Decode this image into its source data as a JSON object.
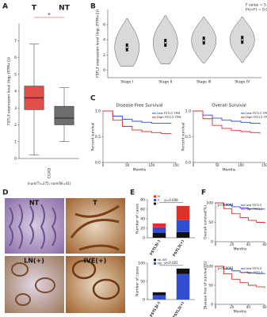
{
  "figure": {
    "labels": [
      "A",
      "B",
      "C",
      "D",
      "E",
      "F"
    ],
    "histology": [
      "NT",
      "T",
      "LN(+)",
      "IVE(+)"
    ]
  },
  "chart_data": [
    {
      "type": "box",
      "ylabel": "FSTL3 expression level (log₂ (TPM+1))",
      "xlabel": "COAD",
      "xnote": "(num(T)=275; num(N)=41)",
      "annotation": "*",
      "series": [
        {
          "name": "T",
          "color": "#e0504a",
          "values": [
            0.2,
            2.9,
            3.6,
            4.3,
            6.8
          ]
        },
        {
          "name": "NT",
          "color": "#6e6e6e",
          "values": [
            1.0,
            2.0,
            2.4,
            3.1,
            4.2
          ]
        }
      ],
      "ylim": [
        0,
        8
      ],
      "yticks": [
        0,
        1,
        2,
        3,
        4,
        5,
        6,
        7
      ]
    },
    {
      "type": "violin",
      "ylabel": "FSTL3 expression level (log₂ (TPM+1))",
      "categories": [
        "Stage I",
        "Stage II",
        "Stage III",
        "Stage IV"
      ],
      "values": [
        3.0,
        3.6,
        3.9,
        4.0
      ],
      "low": [
        0.5,
        0.8,
        0.9,
        1.0
      ],
      "high": [
        6.8,
        7.2,
        7.0,
        7.0
      ],
      "color": "#d9d9d9",
      "annotations": [
        "F value = 5.9",
        "Pr(>F) = 0.000616"
      ],
      "ylim": [
        -1,
        8
      ],
      "yticks": [
        0,
        2,
        4,
        6
      ]
    },
    {
      "type": "km",
      "title": "Disease Free Survival",
      "xlabel": "Months",
      "ylabel": "Percent survival",
      "x": [
        0,
        20,
        40,
        60,
        80,
        100,
        120,
        140
      ],
      "series": [
        {
          "name": "Low FSTL3 TPM",
          "color": "#2f4fd0",
          "values": [
            1,
            0.9,
            0.84,
            0.8,
            0.78,
            0.76,
            0.76,
            0.75
          ]
        },
        {
          "name": "High FSTL3 TPM",
          "color": "#e0302a",
          "values": [
            1,
            0.82,
            0.7,
            0.63,
            0.6,
            0.58,
            0.56,
            0.55
          ]
        }
      ],
      "xlim": [
        0,
        150
      ],
      "xticks": [
        0,
        50,
        100,
        150
      ],
      "ylim": [
        0,
        1
      ],
      "yticks": [
        {
          "value": 0,
          "label": "0.0"
        },
        {
          "value": 0.5,
          "label": "0.5"
        },
        {
          "value": 1,
          "label": "1.0"
        }
      ]
    },
    {
      "type": "km",
      "title": "Overall Survival",
      "xlabel": "Months",
      "ylabel": "Percent survival",
      "x": [
        0,
        20,
        40,
        60,
        80,
        100,
        120,
        140
      ],
      "series": [
        {
          "name": "Low FSTL3 TPM",
          "color": "#2f4fd0",
          "values": [
            1,
            0.92,
            0.86,
            0.82,
            0.8,
            0.78,
            0.76,
            0.74
          ]
        },
        {
          "name": "High FSTL3 TPM",
          "color": "#e0302a",
          "values": [
            1,
            0.85,
            0.72,
            0.66,
            0.62,
            0.6,
            0.58,
            0.56
          ]
        }
      ],
      "xlim": [
        0,
        150
      ],
      "xticks": [
        0,
        50,
        100,
        150
      ],
      "ylim": [
        0,
        1
      ],
      "yticks": [
        {
          "value": 0,
          "label": "0.0"
        },
        {
          "value": 0.5,
          "label": "0.5"
        },
        {
          "value": 1,
          "label": "1.0"
        }
      ]
    },
    {
      "type": "stack",
      "ylabel": "Number of cases",
      "annotation": "p=0.008",
      "categories": [
        "FSTL3(-)",
        "FSTL3(+)"
      ],
      "series": [
        {
          "name": "I",
          "color": "#111111",
          "values": [
            10,
            12
          ]
        },
        {
          "name": "II",
          "color": "#2f4fd0",
          "values": [
            12,
            25
          ]
        },
        {
          "name": "III",
          "color": "#e0302a",
          "values": [
            8,
            30
          ]
        }
      ],
      "ylim": [
        0,
        80
      ],
      "yticks": [
        0,
        20,
        40,
        60,
        80
      ]
    },
    {
      "type": "stack",
      "ylabel": "Number of cases",
      "annotation": "p<0.001",
      "categories": [
        "FSTL3(-)",
        "FSTL3(+)"
      ],
      "series": [
        {
          "name": "IVE",
          "color": "#2f4fd0",
          "values": [
            12,
            70
          ]
        },
        {
          "name": "no-IVE",
          "color": "#111111",
          "values": [
            8,
            15
          ]
        }
      ],
      "ylim": [
        0,
        100
      ],
      "yticks": [
        0,
        50,
        100
      ]
    },
    {
      "type": "km",
      "ylabel": "Overall survival(%)",
      "xlabel": "Months",
      "annotation": "p<0.0001",
      "x": [
        0,
        10,
        20,
        30,
        40,
        50,
        60
      ],
      "series": [
        {
          "name": "Low FSTL3",
          "color": "#2f4fd0",
          "values": [
            100,
            95,
            90,
            87,
            85,
            84,
            83
          ]
        },
        {
          "name": "High FSTL3",
          "color": "#e0302a",
          "values": [
            100,
            85,
            72,
            62,
            55,
            50,
            47
          ]
        }
      ],
      "xlim": [
        0,
        60
      ],
      "xticks": [
        0,
        20,
        40,
        60
      ],
      "ylim": [
        0,
        100
      ],
      "yticks": [
        0,
        50,
        100
      ]
    },
    {
      "type": "km",
      "ylabel": "Disease free of survival(%)",
      "xlabel": "Months",
      "annotation": "p<0.0001",
      "x": [
        0,
        10,
        20,
        30,
        40,
        50,
        60
      ],
      "series": [
        {
          "name": "Low FSTL3",
          "color": "#2f4fd0",
          "values": [
            100,
            93,
            88,
            84,
            82,
            81,
            80
          ]
        },
        {
          "name": "High FSTL3",
          "color": "#e0302a",
          "values": [
            100,
            80,
            66,
            57,
            50,
            46,
            43
          ]
        }
      ],
      "xlim": [
        0,
        60
      ],
      "xticks": [
        0,
        20,
        40,
        60
      ],
      "ylim": [
        0,
        100
      ],
      "yticks": [
        0,
        50,
        100
      ]
    }
  ]
}
